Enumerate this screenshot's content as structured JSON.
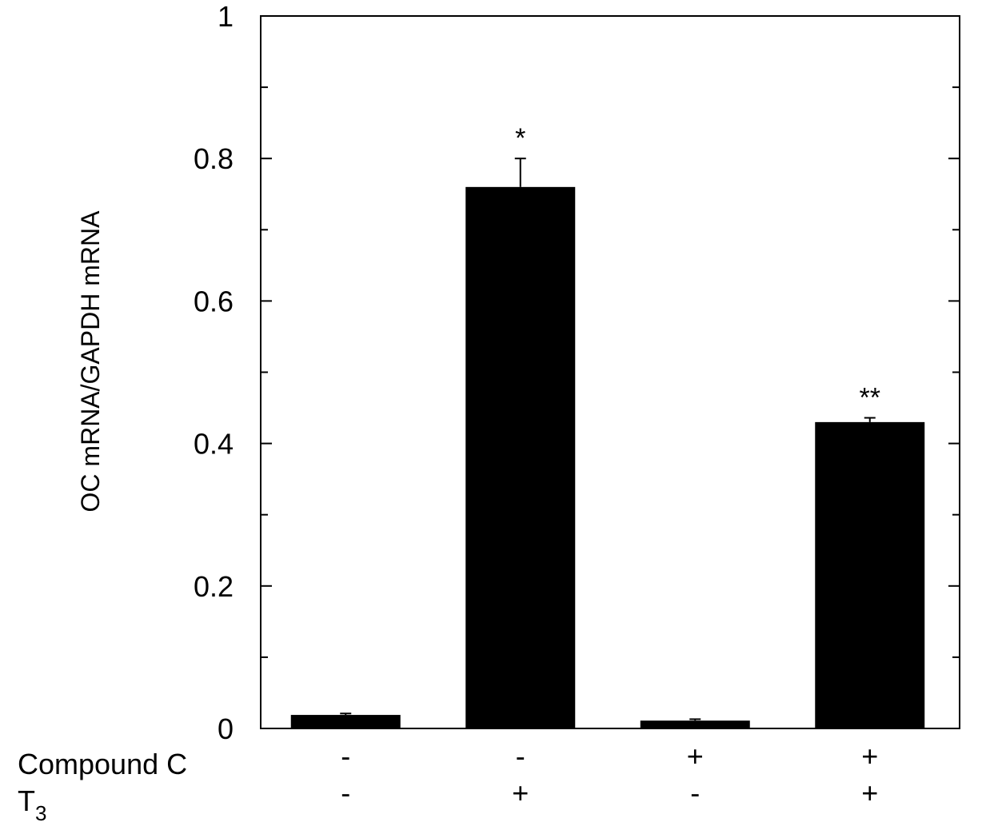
{
  "chart_data": {
    "type": "bar",
    "title": "",
    "ylabel": "OC mRNA/GAPDH mRNA",
    "xlabel": "",
    "ylim": [
      0,
      1
    ],
    "y_ticks": [
      0,
      0.2,
      0.4,
      0.6,
      0.8,
      1
    ],
    "y_tick_labels": [
      "0",
      "0.2",
      "0.4",
      "0.6",
      "0.8",
      "1"
    ],
    "grid": false,
    "legend": "none",
    "bar_color": "#000000",
    "bars": [
      {
        "value": 0.019,
        "error": 0.002,
        "significance": ""
      },
      {
        "value": 0.76,
        "error": 0.04,
        "significance": "*"
      },
      {
        "value": 0.011,
        "error": 0.002,
        "significance": ""
      },
      {
        "value": 0.43,
        "error": 0.006,
        "significance": "**"
      }
    ],
    "condition_rows": [
      {
        "label": "Compound  C",
        "label_sub": "",
        "values": [
          "-",
          "-",
          "+",
          "+"
        ]
      },
      {
        "label": "T",
        "label_sub": "3",
        "values": [
          "-",
          "+",
          "-",
          "+"
        ]
      }
    ]
  }
}
